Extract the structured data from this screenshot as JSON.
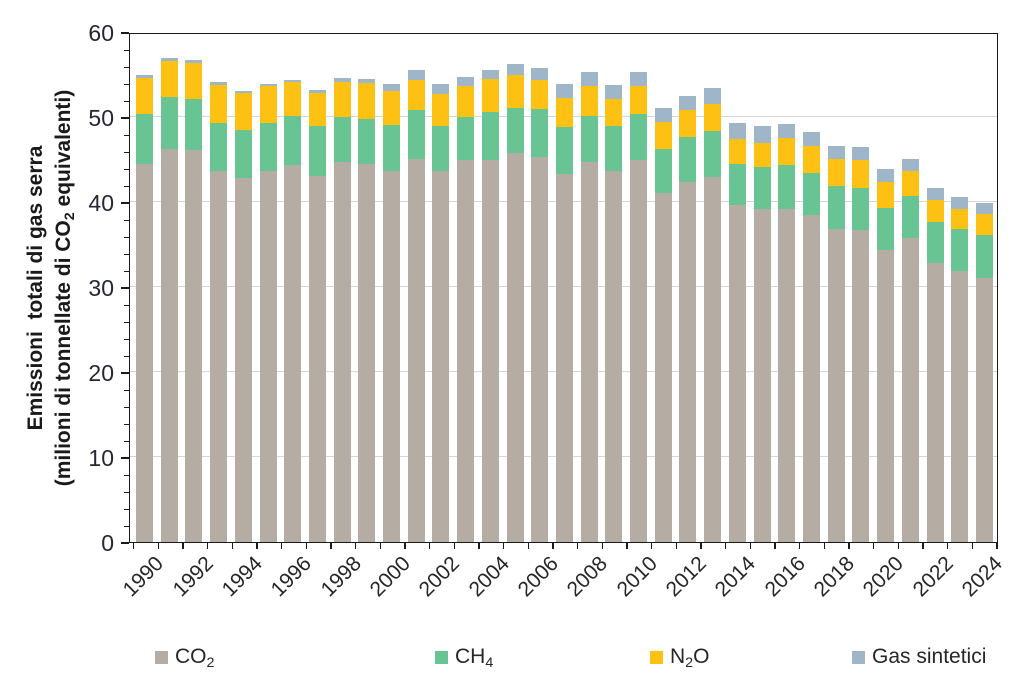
{
  "figure": {
    "background": "#ffffff",
    "axis_color": "#1a1a1a",
    "gridline_color": "#d6d6d6"
  },
  "chart_data": {
    "type": "bar",
    "stacked": true,
    "title": "",
    "ylabel_line1": "Emissioni  totali di gas serra",
    "ylabel_line2": "(milioni di tonnellate di CO₂ equivalenti)",
    "xlabel": "",
    "ylim": [
      0,
      60
    ],
    "ytick_major_step": 10,
    "ytick_minor_step": 2,
    "ytick_labels": [
      "0",
      "10",
      "20",
      "30",
      "40",
      "50",
      "60"
    ],
    "grid": "horizontal-major-behind-bars",
    "legend_position": "bottom",
    "categories": [
      1990,
      1991,
      1992,
      1993,
      1994,
      1995,
      1996,
      1997,
      1998,
      1999,
      2000,
      2001,
      2002,
      2003,
      2004,
      2005,
      2006,
      2007,
      2008,
      2009,
      2010,
      2011,
      2012,
      2013,
      2014,
      2015,
      2016,
      2017,
      2018,
      2019,
      2020,
      2021,
      2022,
      2023,
      2024
    ],
    "xtick_label_every": 2,
    "xtick_labels_shown": [
      "1990",
      "1992",
      "1994",
      "1996",
      "1998",
      "2000",
      "2002",
      "2004",
      "2006",
      "2008",
      "2010",
      "2012",
      "2014",
      "2016",
      "2018",
      "2020",
      "2022",
      "2024"
    ],
    "series": [
      {
        "name": "CO₂",
        "key": "co2",
        "color": "#b5aca3",
        "values": [
          44.5,
          46.2,
          46.1,
          43.7,
          42.8,
          43.6,
          44.3,
          43.1,
          44.7,
          44.5,
          43.6,
          45.1,
          43.6,
          44.9,
          45.0,
          45.8,
          45.3,
          43.3,
          44.7,
          43.6,
          44.9,
          41.1,
          42.3,
          43.0,
          39.6,
          39.2,
          39.2,
          38.5,
          36.8,
          36.7,
          34.3,
          35.8,
          32.8,
          31.9,
          31.1
        ]
      },
      {
        "name": "CH₄",
        "key": "ch4",
        "color": "#68c493",
        "values": [
          5.9,
          6.2,
          6.0,
          5.6,
          5.7,
          5.7,
          5.8,
          5.8,
          5.3,
          5.3,
          5.5,
          5.7,
          5.4,
          5.1,
          5.6,
          5.3,
          5.6,
          5.5,
          5.4,
          5.3,
          5.5,
          5.1,
          5.3,
          5.4,
          4.9,
          4.9,
          5.2,
          4.9,
          5.1,
          4.9,
          5.0,
          4.9,
          4.9,
          4.9,
          5.0
        ]
      },
      {
        "name": "N₂O",
        "key": "n2o",
        "color": "#fdc113",
        "values": [
          4.2,
          4.2,
          4.3,
          4.5,
          4.3,
          4.3,
          4.0,
          3.9,
          4.1,
          4.2,
          4.0,
          3.6,
          3.7,
          3.6,
          3.9,
          3.8,
          3.5,
          3.4,
          3.5,
          3.2,
          3.3,
          3.2,
          3.2,
          3.1,
          2.9,
          2.9,
          3.1,
          3.2,
          3.2,
          3.3,
          3.0,
          2.9,
          2.5,
          2.4,
          2.5
        ]
      },
      {
        "name": "Gas sintetici",
        "key": "gas-sintetici",
        "color": "#9fb6c8",
        "values": [
          0.3,
          0.3,
          0.3,
          0.3,
          0.3,
          0.3,
          0.3,
          0.4,
          0.5,
          0.5,
          0.8,
          1.1,
          1.2,
          1.1,
          1.0,
          1.3,
          1.4,
          1.7,
          1.7,
          1.7,
          1.6,
          1.7,
          1.7,
          1.9,
          1.9,
          1.9,
          1.7,
          1.6,
          1.5,
          1.6,
          1.6,
          1.5,
          1.4,
          1.4,
          1.3
        ]
      }
    ]
  }
}
